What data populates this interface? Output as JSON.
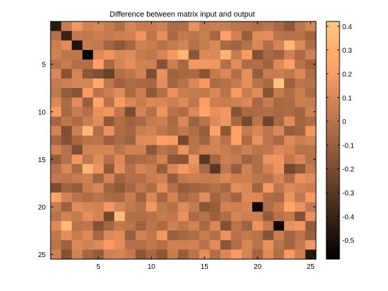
{
  "chart_data": {
    "type": "heatmap",
    "title": "Difference between matrix input and output",
    "xlabel": "",
    "ylabel": "",
    "rows": 25,
    "cols": 25,
    "x_range": [
      0.5,
      25.5
    ],
    "y_range": [
      0.5,
      25.5
    ],
    "y_direction": "top-to-bottom",
    "x_ticks": [
      5,
      10,
      15,
      20,
      25
    ],
    "y_ticks": [
      5,
      10,
      15,
      20,
      25
    ],
    "colormap": "copper",
    "color_range": [
      -0.58,
      0.42
    ],
    "colorbar_ticks": [
      0.4,
      0.3,
      0.2,
      0.1,
      0,
      -0.1,
      -0.2,
      -0.3,
      -0.4,
      -0.5
    ],
    "colorbar_labels": [
      "0.4",
      "0.3",
      "0.2",
      "0.1",
      "0",
      "-0.1",
      "-0.2",
      "-0.3",
      "-0.4",
      "-0.5"
    ],
    "dark_cells": [
      {
        "row": 1,
        "col": 1,
        "value": -0.45
      },
      {
        "row": 2,
        "col": 2,
        "value": -0.4
      },
      {
        "row": 3,
        "col": 3,
        "value": -0.48
      },
      {
        "row": 4,
        "col": 4,
        "value": -0.56
      },
      {
        "row": 20,
        "col": 20,
        "value": -0.55
      },
      {
        "row": 22,
        "col": 22,
        "value": -0.53
      },
      {
        "row": 25,
        "col": 25,
        "value": -0.45
      },
      {
        "row": 16,
        "col": 16,
        "value": -0.3
      },
      {
        "row": 6,
        "col": 6,
        "value": -0.25
      },
      {
        "row": 13,
        "col": 13,
        "value": -0.22
      },
      {
        "row": 15,
        "col": 15,
        "value": -0.3
      }
    ],
    "bright_cells": [
      {
        "row": 4,
        "col": 13,
        "value": 0.33
      },
      {
        "row": 4,
        "col": 17,
        "value": 0.32
      },
      {
        "row": 3,
        "col": 23,
        "value": 0.34
      },
      {
        "row": 7,
        "col": 22,
        "value": 0.4
      },
      {
        "row": 12,
        "col": 4,
        "value": 0.33
      },
      {
        "row": 16,
        "col": 4,
        "value": 0.33
      },
      {
        "row": 21,
        "col": 7,
        "value": 0.36
      },
      {
        "row": 22,
        "col": 2,
        "value": 0.36
      }
    ],
    "background_value_range": [
      -0.25,
      0.3
    ]
  }
}
